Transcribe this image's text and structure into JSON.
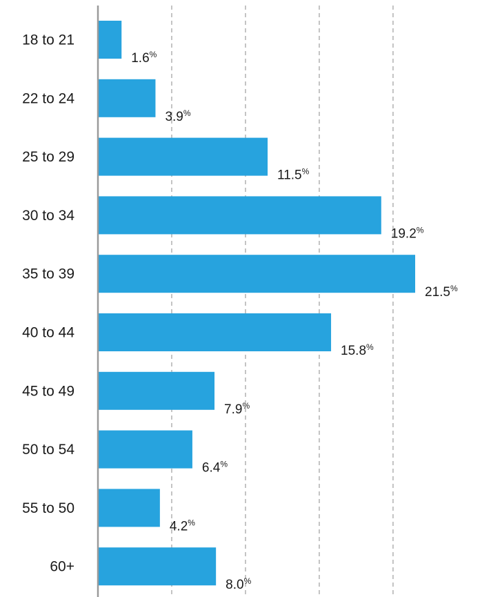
{
  "chart_data": {
    "type": "bar",
    "orientation": "horizontal",
    "categories": [
      "18 to 21",
      "22 to 24",
      "25 to 29",
      "30 to 34",
      "35 to 39",
      "40 to 44",
      "45 to 49",
      "50 to 54",
      "55 to 50",
      "60+"
    ],
    "values": [
      1.6,
      3.9,
      11.5,
      19.2,
      21.5,
      15.8,
      7.9,
      6.4,
      4.2,
      8.0
    ],
    "value_labels": [
      "1.6",
      "3.9",
      "11.5",
      "19.2",
      "21.5",
      "15.8",
      "7.9",
      "6.4",
      "4.2",
      "8.0"
    ],
    "value_suffix": "%",
    "xlim": [
      0,
      21.5
    ],
    "grid": "vertical dashed at 5, 10, 15, 20",
    "grid_values": [
      5,
      10,
      15,
      20
    ],
    "bar_color": "#27a3de",
    "grid_color": "#b0b0b0",
    "axis_color": "#9a9a9a",
    "title": "",
    "xlabel": "",
    "ylabel": ""
  }
}
